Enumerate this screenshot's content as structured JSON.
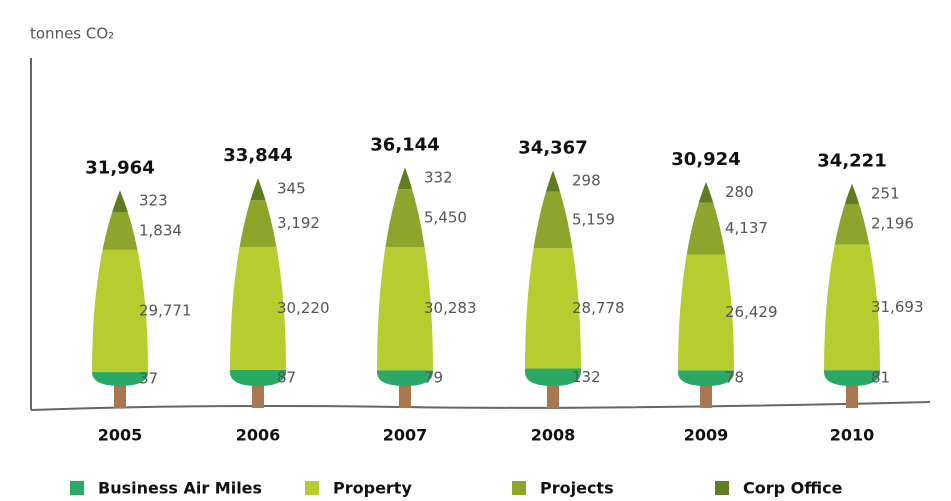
{
  "chart_data": {
    "type": "tree-stack",
    "y_label": "tonnes CO₂",
    "categories": [
      "2005",
      "2006",
      "2007",
      "2008",
      "2009",
      "2010"
    ],
    "totals": [
      31964,
      33844,
      36144,
      34367,
      30924,
      34221
    ],
    "total_labels": [
      "31,964",
      "33,844",
      "36,144",
      "34,367",
      "30,924",
      "34,221"
    ],
    "series": [
      {
        "name": "Business Air Miles",
        "color": "#2aa866",
        "values": [
          37,
          87,
          79,
          132,
          78,
          81
        ],
        "value_labels": [
          "37",
          "87",
          "79",
          "132",
          "78",
          "81"
        ]
      },
      {
        "name": "Property",
        "color": "#b7cd2f",
        "values": [
          29771,
          30220,
          30283,
          28778,
          26429,
          31693
        ],
        "value_labels": [
          "29,771",
          "30,220",
          "30,283",
          "28,778",
          "26,429",
          "31,693"
        ]
      },
      {
        "name": "Projects",
        "color": "#8da52a",
        "values": [
          1834,
          3192,
          5450,
          5159,
          4137,
          2196
        ],
        "value_labels": [
          "1,834",
          "3,192",
          "5,450",
          "5,159",
          "4,137",
          "2,196"
        ]
      },
      {
        "name": "Corp Office",
        "color": "#5e7c20",
        "values": [
          323,
          345,
          332,
          298,
          280,
          251
        ],
        "value_labels": [
          "323",
          "345",
          "332",
          "298",
          "280",
          "251"
        ]
      }
    ],
    "trunk_color": "#a8774f"
  }
}
